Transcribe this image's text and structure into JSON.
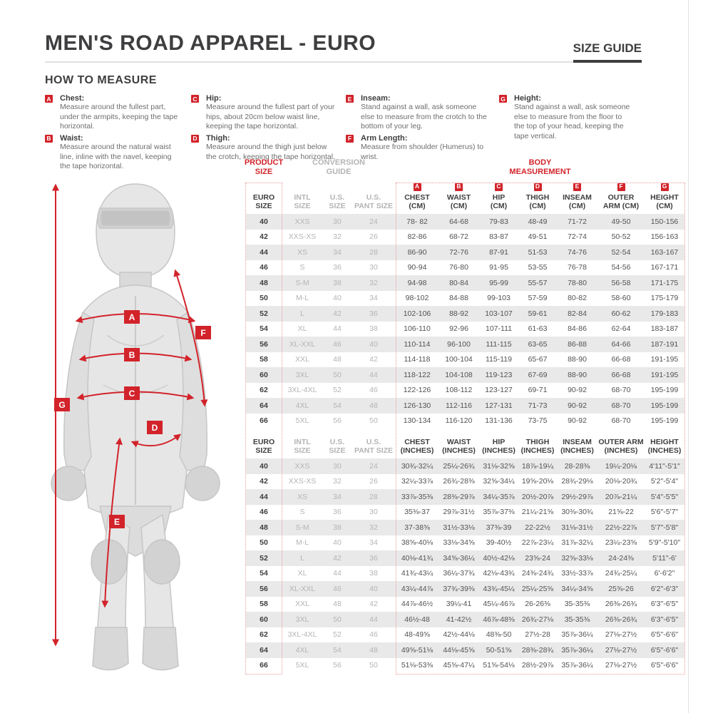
{
  "header": {
    "title": "MEN'S ROAD APPAREL - EURO",
    "size_guide_label": "SIZE GUIDE"
  },
  "how_to_measure": {
    "heading": "HOW TO MEASURE",
    "items": [
      {
        "letter": "A",
        "label": "Chest:",
        "desc": "Measure around the fullest part, under the armpits, keeping the tape horizontal."
      },
      {
        "letter": "B",
        "label": "Waist:",
        "desc": "Measure around the natural waist line, inline with the navel, keeping the tape horizontal."
      },
      {
        "letter": "C",
        "label": "Hip:",
        "desc": "Measure around the fullest part of your hips, about 20cm below waist line, keeping the tape horizontal."
      },
      {
        "letter": "D",
        "label": "Thigh:",
        "desc": "Measure around the thigh just below the crotch, keeping the tape horizontal."
      },
      {
        "letter": "E",
        "label": "Inseam:",
        "desc": "Stand against a wall, ask someone else to measure from the crotch to the bottom of your leg."
      },
      {
        "letter": "F",
        "label": "Arm Length:",
        "desc": "Measure from shoulder (Humerus) to wrist."
      },
      {
        "letter": "G",
        "label": "Height:",
        "desc": "Stand against a wall, ask someone else to measure from the floor to the top of your head, keeping the tape vertical."
      }
    ]
  },
  "figure": {
    "letters": {
      "a": "A",
      "b": "B",
      "c": "C",
      "d": "D",
      "e": "E",
      "f": "F",
      "g": "G"
    }
  },
  "table": {
    "product_size_label": "PRODUCT\nSIZE",
    "conversion_guide_label": "CONVERSION\nGUIDE",
    "body_measurement_label": "BODY\nMEASUREMENT",
    "badge_letters": [
      "A",
      "B",
      "C",
      "D",
      "E",
      "F",
      "G"
    ],
    "cm_headers": [
      "EURO\nSIZE",
      "INTL\nSIZE",
      "U.S.\nSIZE",
      "U.S.\nPANT SIZE",
      "CHEST\n(CM)",
      "WAIST\n(CM)",
      "HIP\n(CM)",
      "THIGH\n(CM)",
      "INSEAM\n(CM)",
      "OUTER\nARM (CM)",
      "HEIGHT\n(CM)"
    ],
    "inch_headers": [
      "EURO\nSIZE",
      "INTL\nSIZE",
      "U.S.\nSIZE",
      "U.S.\nPANT SIZE",
      "CHEST\n(INCHES)",
      "WAIST\n(INCHES)",
      "HIP\n(INCHES)",
      "THIGH\n(INCHES)",
      "INSEAM\n(INCHES)",
      "OUTER ARM\n(INCHES)",
      "HEIGHT\n(INCHES)"
    ],
    "cm_rows": [
      [
        "40",
        "XXS",
        "30",
        "24",
        "78- 82",
        "64-68",
        "79-83",
        "48-49",
        "71-72",
        "49-50",
        "150-156"
      ],
      [
        "42",
        "XXS-XS",
        "32",
        "26",
        "82-86",
        "68-72",
        "83-87",
        "49-51",
        "72-74",
        "50-52",
        "156-163"
      ],
      [
        "44",
        "XS",
        "34",
        "28",
        "86-90",
        "72-76",
        "87-91",
        "51-53",
        "74-76",
        "52-54",
        "163-167"
      ],
      [
        "46",
        "S",
        "36",
        "30",
        "90-94",
        "76-80",
        "91-95",
        "53-55",
        "76-78",
        "54-56",
        "167-171"
      ],
      [
        "48",
        "S-M",
        "38",
        "32",
        "94-98",
        "80-84",
        "95-99",
        "55-57",
        "78-80",
        "56-58",
        "171-175"
      ],
      [
        "50",
        "M-L",
        "40",
        "34",
        "98-102",
        "84-88",
        "99-103",
        "57-59",
        "80-82",
        "58-60",
        "175-179"
      ],
      [
        "52",
        "L",
        "42",
        "36",
        "102-106",
        "88-92",
        "103-107",
        "59-61",
        "82-84",
        "60-62",
        "179-183"
      ],
      [
        "54",
        "XL",
        "44",
        "38",
        "106-110",
        "92-96",
        "107-111",
        "61-63",
        "84-86",
        "62-64",
        "183-187"
      ],
      [
        "56",
        "XL-XXL",
        "46",
        "40",
        "110-114",
        "96-100",
        "111-115",
        "63-65",
        "86-88",
        "64-66",
        "187-191"
      ],
      [
        "58",
        "XXL",
        "48",
        "42",
        "114-118",
        "100-104",
        "115-119",
        "65-67",
        "88-90",
        "66-68",
        "191-195"
      ],
      [
        "60",
        "3XL",
        "50",
        "44",
        "118-122",
        "104-108",
        "119-123",
        "67-69",
        "88-90",
        "66-68",
        "191-195"
      ],
      [
        "62",
        "3XL-4XL",
        "52",
        "46",
        "122-126",
        "108-112",
        "123-127",
        "69-71",
        "90-92",
        "68-70",
        "195-199"
      ],
      [
        "64",
        "4XL",
        "54",
        "48",
        "126-130",
        "112-116",
        "127-131",
        "71-73",
        "90-92",
        "68-70",
        "195-199"
      ],
      [
        "66",
        "5XL",
        "56",
        "50",
        "130-134",
        "116-120",
        "131-136",
        "73-75",
        "90-92",
        "68-70",
        "195-199"
      ]
    ],
    "inch_rows": [
      [
        "40",
        "XXS",
        "30",
        "24",
        "30¾-32¼",
        "25¼-26¾",
        "31⅛-32⅝",
        "18⅞-19¼",
        "28-28⅜",
        "19¼-20⅛",
        "4'11\"-5'1\""
      ],
      [
        "42",
        "XXS-XS",
        "32",
        "26",
        "32¼-33⅞",
        "26¾-28⅜",
        "32⅝-34¼",
        "19⅝-20⅛",
        "28¾-29⅛",
        "20⅛-20¾",
        "5'2\"-5'4\""
      ],
      [
        "44",
        "XS",
        "34",
        "28",
        "33⅞-35⅜",
        "28⅜-29⅞",
        "34¼-35⅞",
        "20½-20⅞",
        "29½-29⅞",
        "20⅞-21¼",
        "5'4\"-5'5\""
      ],
      [
        "46",
        "S",
        "36",
        "30",
        "35⅜-37",
        "29⅞-31½",
        "35⅞-37⅜",
        "21¼-21⅝",
        "30⅜-30¾",
        "21⅝-22",
        "5'6\"-5'7\""
      ],
      [
        "48",
        "S-M",
        "38",
        "32",
        "37-38⅝",
        "31½-33⅛",
        "37⅜-39",
        "22-22½",
        "31⅛-31½",
        "22½-22⅞",
        "5'7\"-5'8\""
      ],
      [
        "50",
        "M-L",
        "40",
        "34",
        "38⅝-40⅛",
        "33⅛-34⅝",
        "39-40½",
        "22⅞-23¼",
        "31⅞-32¼",
        "23¼-23⅝",
        "5'9\"-5'10\""
      ],
      [
        "52",
        "L",
        "42",
        "36",
        "40⅛-41¾",
        "34⅝-36¼",
        "40½-42⅛",
        "23⅝-24",
        "32⅝-33⅛",
        "24-24⅜",
        "5'11\"-6'"
      ],
      [
        "54",
        "XL",
        "44",
        "38",
        "41¾-43¼",
        "36¼-37¾",
        "42⅛-43¾",
        "24⅜-24¾",
        "33½-33⅞",
        "24¾-25¼",
        "6'-6'2\""
      ],
      [
        "56",
        "XL-XXL",
        "46",
        "40",
        "43¼-44⅞",
        "37¾-39⅜",
        "43¾-45¼",
        "25¼-25⅝",
        "34¼-34⅝",
        "25⅝-26",
        "6'2\"-6'3\""
      ],
      [
        "58",
        "XXL",
        "48",
        "42",
        "44⅞-46½",
        "39¼-41",
        "45¼-46⅞",
        "26-26⅜",
        "35-35⅜",
        "26⅜-26¾",
        "6'3\"-6'5\""
      ],
      [
        "60",
        "3XL",
        "50",
        "44",
        "46½-48",
        "41-42½",
        "46⅞-48⅜",
        "26¾-27⅛",
        "35-35⅜",
        "26⅜-26¾",
        "6'3\"-6'5\""
      ],
      [
        "62",
        "3XL-4XL",
        "52",
        "46",
        "48-49⅝",
        "42½-44⅛",
        "48⅜-50",
        "27½-28",
        "35⅞-36¼",
        "27⅛-27½",
        "6'5\"-6'6\""
      ],
      [
        "64",
        "4XL",
        "54",
        "48",
        "49⅝-51⅛",
        "44⅛-45⅝",
        "50-51⅝",
        "28⅜-28¾",
        "35⅞-36¼",
        "27⅛-27½",
        "6'5\"-6'6\""
      ],
      [
        "66",
        "5XL",
        "56",
        "50",
        "51⅛-53⅜",
        "45⅝-47¼",
        "51⅝-54⅛",
        "28½-29⅞",
        "35⅞-36¼",
        "27⅛-27½",
        "6'5\"-6'6\""
      ]
    ]
  },
  "colors": {
    "accent_red": "#d2232a",
    "dark_text": "#3e3e40",
    "gray_text": "#b4b4b6",
    "stripe": "#e9e9ea"
  }
}
